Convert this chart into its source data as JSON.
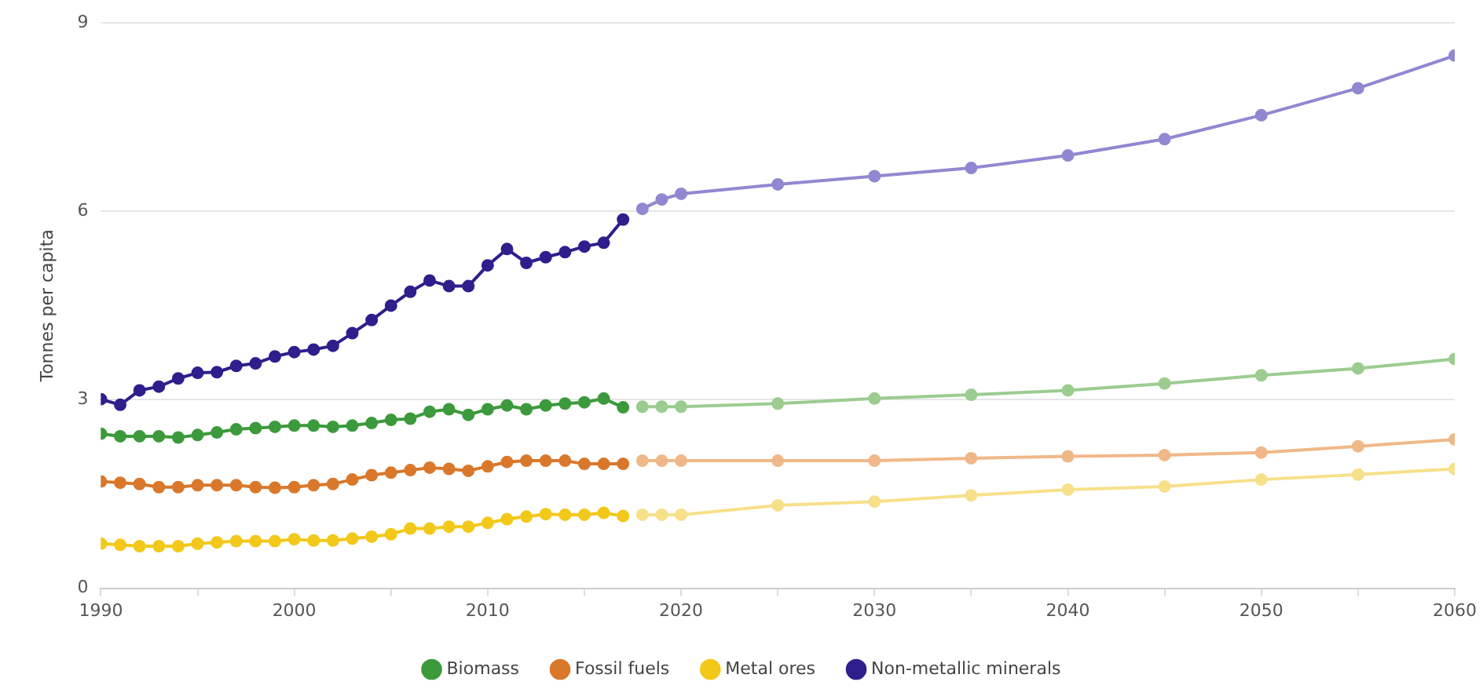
{
  "chart_data": {
    "type": "line",
    "ylabel": "Tonnes per capita",
    "xlim": [
      1990,
      2060
    ],
    "xticks": [
      1990,
      {
        "value": 1995,
        "label": null
      },
      2000,
      {
        "value": 2005,
        "label": null
      },
      2010,
      {
        "value": 2015,
        "label": null
      },
      2020,
      {
        "value": 2025,
        "label": null
      },
      2030,
      {
        "value": 2035,
        "label": null
      },
      2040,
      {
        "value": 2045,
        "label": null
      },
      2050,
      {
        "value": 2055,
        "label": null
      },
      2060
    ],
    "ylim": [
      0,
      9
    ],
    "yticks": [
      0,
      3,
      6,
      9
    ],
    "grid": "y",
    "legend": "bottom",
    "marker": "circle",
    "line_style": "solid",
    "series": [
      {
        "color": "#9ccc90",
        "x": [
          2018,
          2019,
          2020,
          2025,
          2030,
          2035,
          2040,
          2045,
          2050,
          2055,
          2060
        ],
        "values": [
          2.89,
          2.89,
          2.89,
          2.94,
          3.02,
          3.08,
          3.15,
          3.26,
          3.39,
          3.5,
          3.65
        ]
      },
      {
        "color": "#f0b888",
        "x": [
          2018,
          2019,
          2020,
          2025,
          2030,
          2035,
          2040,
          2045,
          2050,
          2055,
          2060
        ],
        "values": [
          2.03,
          2.03,
          2.03,
          2.03,
          2.03,
          2.07,
          2.1,
          2.12,
          2.16,
          2.26,
          2.37
        ]
      },
      {
        "color": "#f7e08a",
        "x": [
          2018,
          2019,
          2020,
          2025,
          2030,
          2035,
          2040,
          2045,
          2050,
          2055,
          2060
        ],
        "values": [
          1.17,
          1.17,
          1.17,
          1.32,
          1.38,
          1.48,
          1.57,
          1.62,
          1.73,
          1.81,
          1.9
        ]
      },
      {
        "color": "#9088d0",
        "x": [
          2018,
          2019,
          2020,
          2025,
          2030,
          2035,
          2040,
          2045,
          2050,
          2055,
          2060
        ],
        "values": [
          6.04,
          6.19,
          6.28,
          6.43,
          6.56,
          6.69,
          6.89,
          7.15,
          7.53,
          7.96,
          8.48
        ]
      },
      {
        "name": "Biomass",
        "color": "#3c9a3c",
        "x": [
          1990,
          1991,
          1992,
          1993,
          1994,
          1995,
          1996,
          1997,
          1998,
          1999,
          2000,
          2001,
          2002,
          2003,
          2004,
          2005,
          2006,
          2007,
          2008,
          2009,
          2010,
          2011,
          2012,
          2013,
          2014,
          2015,
          2016,
          2017
        ],
        "values": [
          2.46,
          2.42,
          2.42,
          2.42,
          2.4,
          2.44,
          2.48,
          2.53,
          2.55,
          2.57,
          2.59,
          2.59,
          2.57,
          2.59,
          2.63,
          2.68,
          2.7,
          2.81,
          2.85,
          2.76,
          2.85,
          2.91,
          2.85,
          2.91,
          2.94,
          2.96,
          3.02,
          2.88
        ]
      },
      {
        "name": "Fossil fuels",
        "color": "#d9782b",
        "x": [
          1990,
          1991,
          1992,
          1993,
          1994,
          1995,
          1996,
          1997,
          1998,
          1999,
          2000,
          2001,
          2002,
          2003,
          2004,
          2005,
          2006,
          2007,
          2008,
          2009,
          2010,
          2011,
          2012,
          2013,
          2014,
          2015,
          2016,
          2017
        ],
        "values": [
          1.7,
          1.68,
          1.66,
          1.61,
          1.61,
          1.64,
          1.64,
          1.64,
          1.61,
          1.6,
          1.61,
          1.64,
          1.66,
          1.73,
          1.8,
          1.84,
          1.88,
          1.92,
          1.9,
          1.87,
          1.94,
          2.01,
          2.03,
          2.03,
          2.03,
          1.98,
          1.98,
          1.98
        ]
      },
      {
        "name": "Metal ores",
        "color": "#f2c81a",
        "x": [
          1990,
          1991,
          1992,
          1993,
          1994,
          1995,
          1996,
          1997,
          1998,
          1999,
          2000,
          2001,
          2002,
          2003,
          2004,
          2005,
          2006,
          2007,
          2008,
          2009,
          2010,
          2011,
          2012,
          2013,
          2014,
          2015,
          2016,
          2017
        ],
        "values": [
          0.71,
          0.69,
          0.67,
          0.67,
          0.67,
          0.71,
          0.73,
          0.75,
          0.75,
          0.75,
          0.78,
          0.76,
          0.76,
          0.79,
          0.82,
          0.86,
          0.95,
          0.95,
          0.98,
          0.98,
          1.04,
          1.1,
          1.14,
          1.18,
          1.17,
          1.17,
          1.2,
          1.15
        ]
      },
      {
        "name": "Non-metallic minerals",
        "color": "#2e1f8c",
        "x": [
          1990,
          1991,
          1992,
          1993,
          1994,
          1995,
          1996,
          1997,
          1998,
          1999,
          2000,
          2001,
          2002,
          2003,
          2004,
          2005,
          2006,
          2007,
          2008,
          2009,
          2010,
          2011,
          2012,
          2013,
          2014,
          2015,
          2016,
          2017
        ],
        "values": [
          3.01,
          2.92,
          3.15,
          3.21,
          3.34,
          3.43,
          3.44,
          3.54,
          3.58,
          3.69,
          3.76,
          3.8,
          3.86,
          4.06,
          4.27,
          4.5,
          4.72,
          4.9,
          4.81,
          4.81,
          5.14,
          5.4,
          5.18,
          5.27,
          5.35,
          5.44,
          5.5,
          5.87
        ]
      }
    ]
  }
}
